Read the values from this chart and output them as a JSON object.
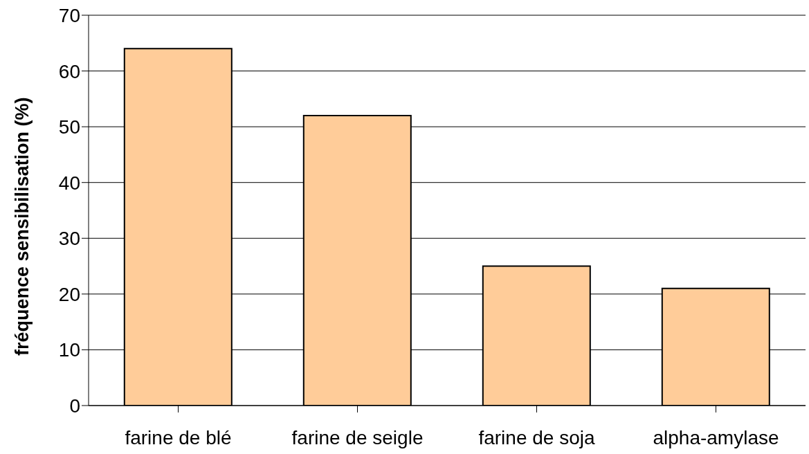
{
  "chart_data": {
    "type": "bar",
    "ylabel": "fréquence sensibilisation (%)",
    "categories": [
      "farine de blé",
      "farine de seigle",
      "farine de soja",
      "alpha-amylase"
    ],
    "values": [
      64,
      52,
      25,
      21
    ],
    "color": "#ffcc99",
    "ylim": [
      0,
      70
    ],
    "yticks": [
      0,
      10,
      20,
      30,
      40,
      50,
      60,
      70
    ],
    "grid": "y"
  }
}
